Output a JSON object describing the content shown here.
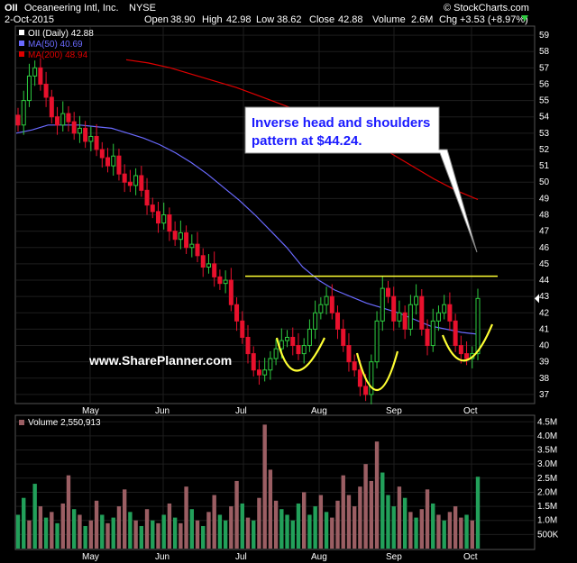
{
  "header": {
    "symbol": "OII",
    "company": "Oceaneering Intl, Inc.",
    "exchange": "NYSE",
    "date": "2-Oct-2015",
    "open_label": "Open",
    "open": "38.90",
    "high_label": "High",
    "high": "42.98",
    "low_label": "Low",
    "low": "38.62",
    "close_label": "Close",
    "close": "42.88",
    "volume_label": "Volume",
    "volume": "2.6M",
    "chg_label": "Chg",
    "chg": "+3.53 (+8.97%)",
    "brand": "© StockCharts.com"
  },
  "legend": {
    "price": "OII (Daily) 42.88",
    "ma50": "MA(50) 40.69",
    "ma200": "MA(200) 48.94",
    "volume": "Volume 2,550,913"
  },
  "annotation": {
    "line1": "Inverse head and shoulders",
    "line2": "pattern at $44.24."
  },
  "watermark": "www.SharePlanner.com",
  "colors": {
    "up": "#2ecc40",
    "down": "#e8112d",
    "ma50": "#6a6aff",
    "ma200": "#e00000",
    "neckline": "#ffff33",
    "vol_up": "#22a05a",
    "vol_down": "#9b5e63"
  },
  "chart_data": [
    {
      "type": "line",
      "x": [
        "May",
        "Jun",
        "Jul",
        "Aug",
        "Sep",
        "Oct"
      ],
      "ylim": [
        36.5,
        59.5
      ],
      "yticks": [
        37,
        38,
        39,
        40,
        41,
        42,
        43,
        44,
        45,
        46,
        47,
        48,
        49,
        50,
        51,
        52,
        53,
        54,
        55,
        56,
        57,
        58,
        59
      ],
      "close_series": [
        53.5,
        55.0,
        56.5,
        57.0,
        56.0,
        55.2,
        54.0,
        53.5,
        54.2,
        53.7,
        53.0,
        53.3,
        52.5,
        52.8,
        52.0,
        51.5,
        51.0,
        51.6,
        50.5,
        50.0,
        49.8,
        50.4,
        49.5,
        48.6,
        48.2,
        47.5,
        48.0,
        47.0,
        46.5,
        46.9,
        46.0,
        46.2,
        45.5,
        44.8,
        45.0,
        44.2,
        43.8,
        44.0,
        42.5,
        41.5,
        40.5,
        39.5,
        38.5,
        38.2,
        38.5,
        39.2,
        39.8,
        40.3,
        40.5,
        40.0,
        39.5,
        40.0,
        41.0,
        42.0,
        42.5,
        43.0,
        42.0,
        41.0,
        40.0,
        39.0,
        38.5,
        37.5,
        37.0,
        39.0,
        41.5,
        43.5,
        43.0,
        41.5,
        42.0,
        41.0,
        42.5,
        43.0,
        41.0,
        40.0,
        41.5,
        42.0,
        42.5,
        41.5,
        40.0,
        39.5,
        39.2,
        39.5,
        42.88
      ],
      "ma50": [
        53.0,
        53.2,
        53.5,
        53.5,
        53.5,
        53.4,
        53.3,
        53.0,
        52.7,
        52.3,
        51.8,
        51.2,
        50.5,
        49.7,
        48.9,
        48.0,
        47.0,
        46.0,
        44.8,
        44.0,
        43.4,
        43.0,
        42.6,
        42.3,
        42.0,
        41.6,
        41.2,
        41.0,
        40.8,
        40.69
      ],
      "ma200": [
        57.5,
        57.3,
        57.0,
        56.6,
        56.2,
        55.8,
        55.3,
        54.8,
        54.3,
        53.8,
        53.2,
        52.5,
        51.8,
        51.0,
        50.2,
        49.5,
        48.94
      ],
      "neckline": 44.24,
      "last_price": 42.88
    },
    {
      "type": "bar",
      "title": "Volume 2,550,913",
      "ylim": [
        0,
        4.7
      ],
      "yticks": [
        "500K",
        "1.0M",
        "1.5M",
        "2.0M",
        "2.5M",
        "3.0M",
        "3.5M",
        "4.0M",
        "4.5M"
      ],
      "volume_millions": [
        1.2,
        1.8,
        1.0,
        2.3,
        1.5,
        1.1,
        1.3,
        0.9,
        1.6,
        2.6,
        1.4,
        1.2,
        0.8,
        1.0,
        1.7,
        1.2,
        0.9,
        1.1,
        1.5,
        2.1,
        1.3,
        1.0,
        0.8,
        1.4,
        1.0,
        0.9,
        1.2,
        1.6,
        1.1,
        0.9,
        2.2,
        1.4,
        1.0,
        0.8,
        1.3,
        1.9,
        1.2,
        1.0,
        1.5,
        2.4,
        1.6,
        1.1,
        1.0,
        1.8,
        4.4,
        2.8,
        1.7,
        1.4,
        1.2,
        1.0,
        1.6,
        2.0,
        1.2,
        1.5,
        1.9,
        1.3,
        1.1,
        1.7,
        2.6,
        1.9,
        1.5,
        2.2,
        3.0,
        2.4,
        3.8,
        2.7,
        1.9,
        1.5,
        2.2,
        1.8,
        1.3,
        1.1,
        1.4,
        2.1,
        1.6,
        1.2,
        1.0,
        1.3,
        1.5,
        1.1,
        1.2,
        1.0,
        2.55
      ],
      "volume_direction": "up,up,down,up,down,up,down,up,down,down,up,down,up,down,down,up,down,up,down,down,up,down,up,down,up,down,up,down,up,down,down,up,down,up,down,down,up,up,down,down,up,down,up,down,down,down,down,up,up,up,up,down,up,up,down,up,down,down,down,down,down,down,down,down,down,up,up,up,down,up,down,up,down,down,up,down,up,down,down,down,up,down,up"
    }
  ]
}
